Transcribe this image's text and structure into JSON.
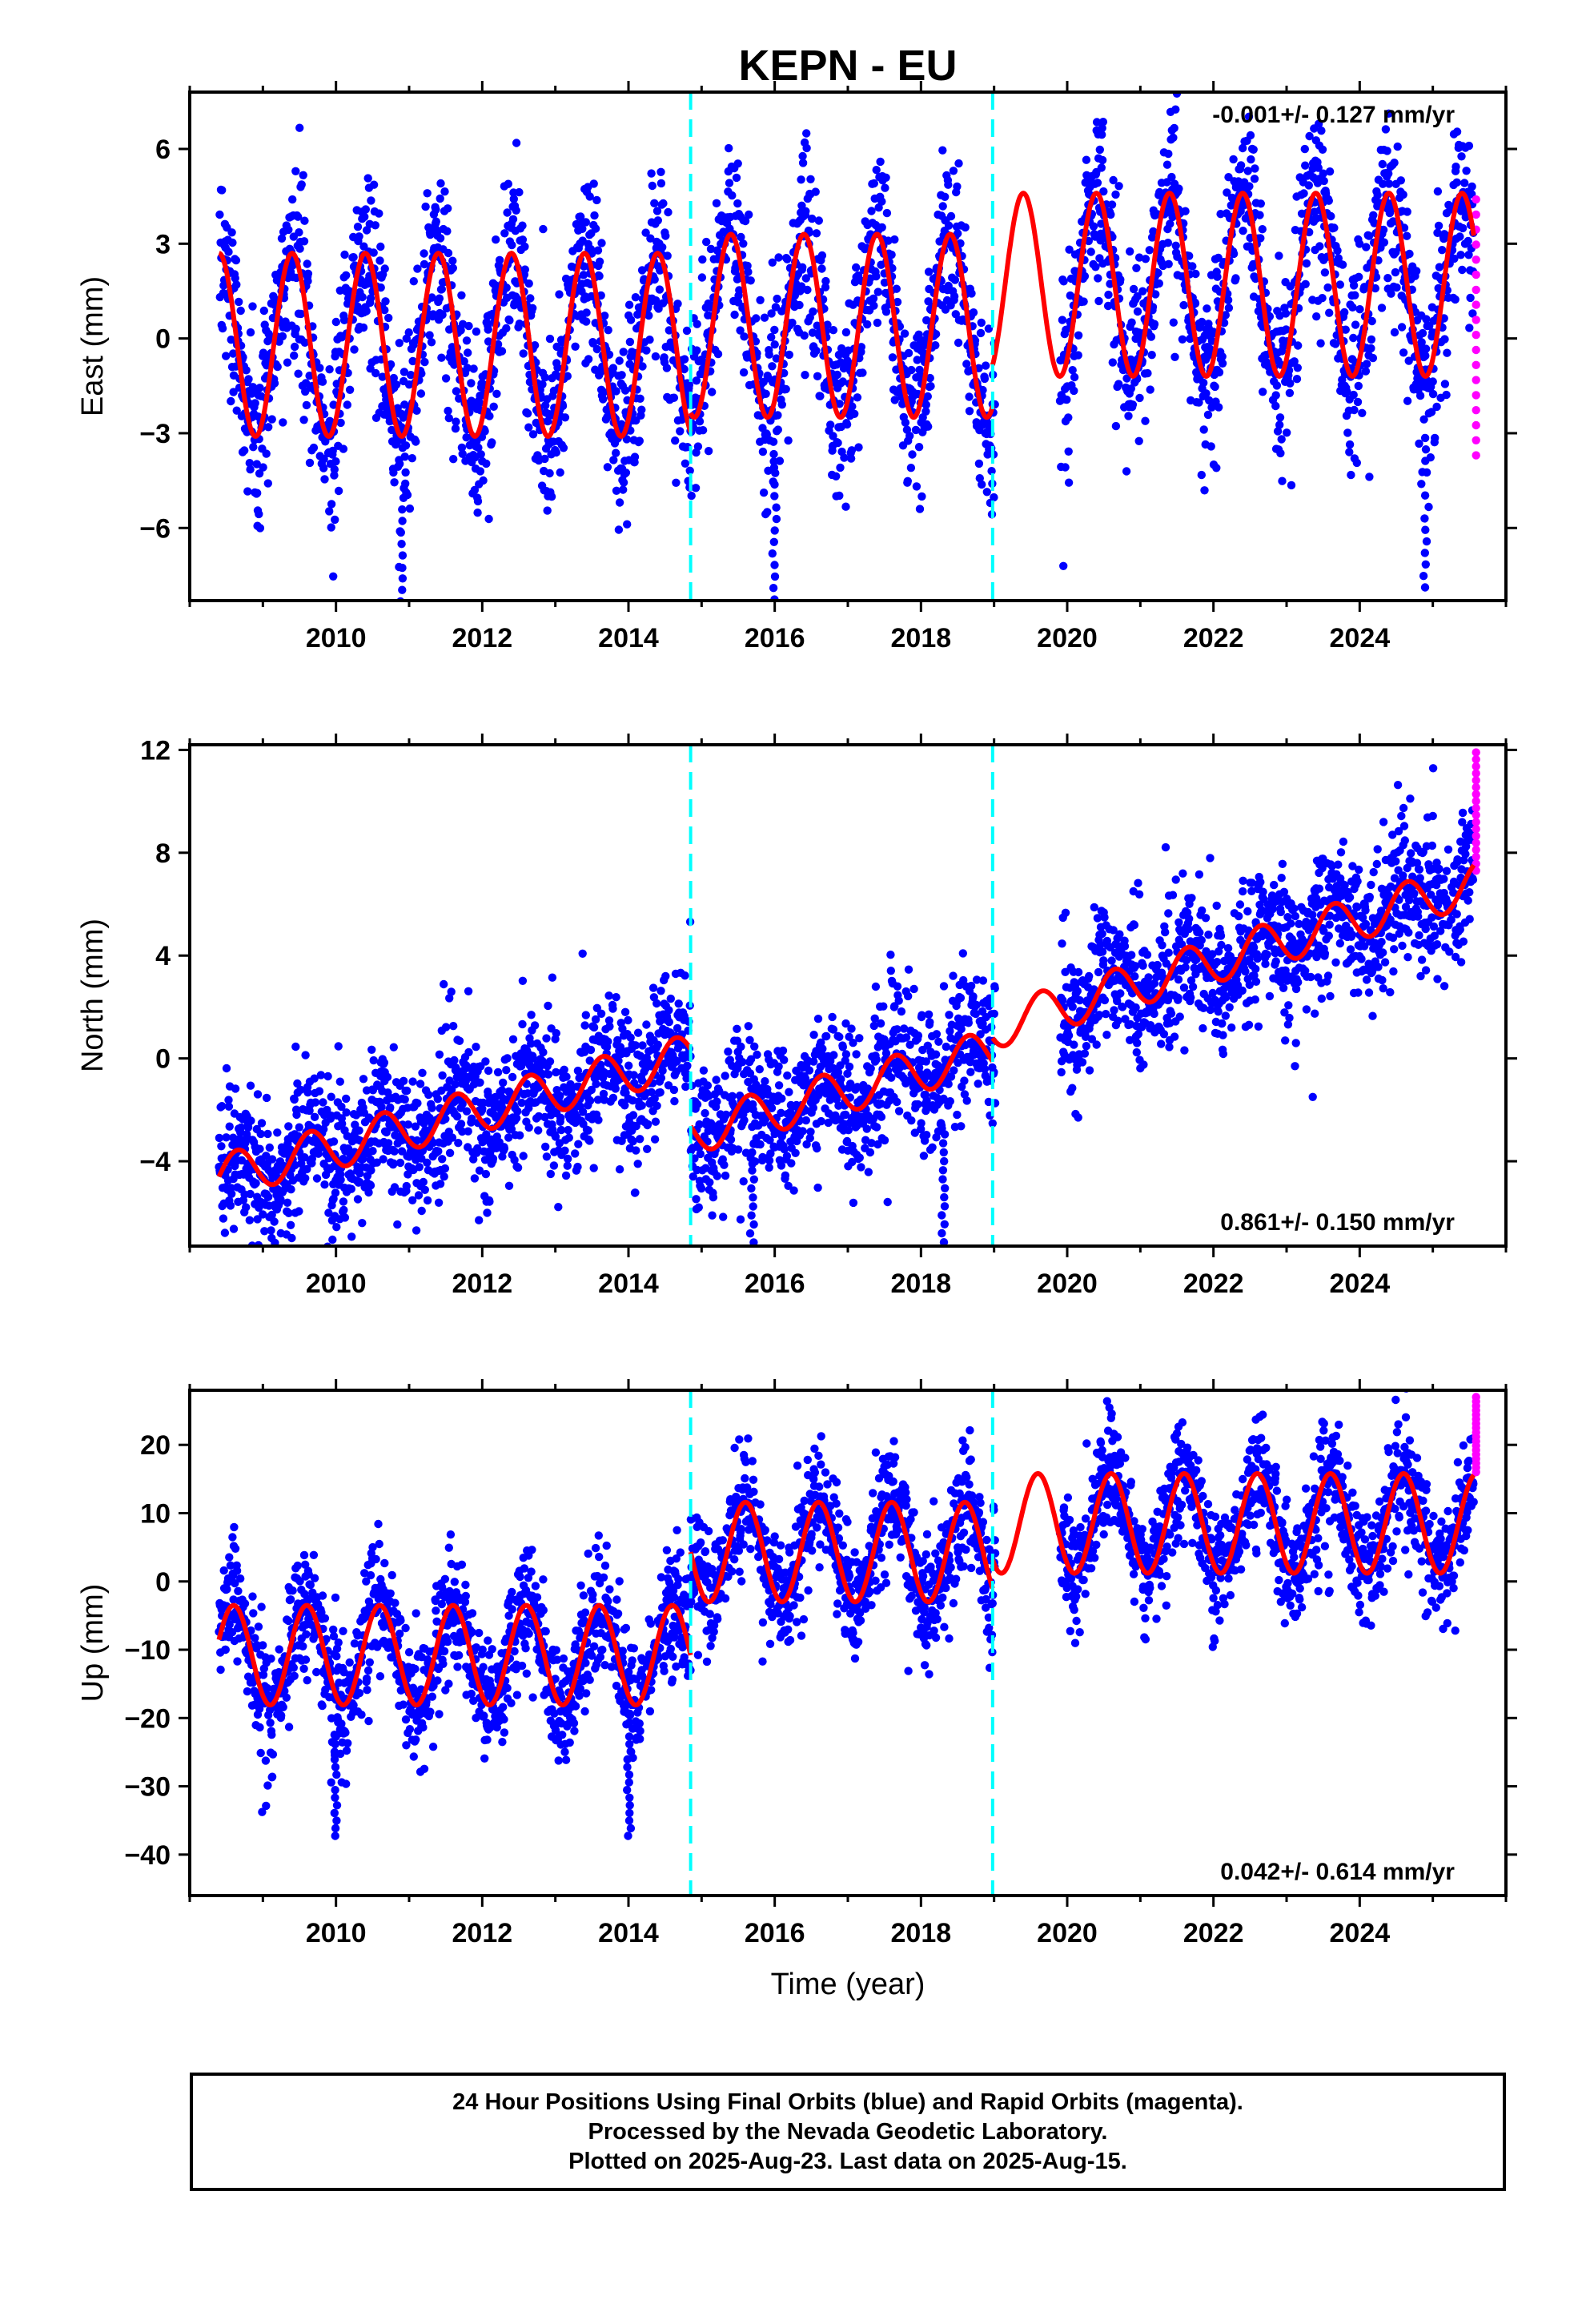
{
  "title": "KEPN - EU",
  "xlabel": "Time (year)",
  "footer": {
    "line1": "24 Hour Positions Using Final Orbits (blue) and Rapid Orbits (magenta).",
    "line2": "Processed by the Nevada Geodetic Laboratory.",
    "line3": "Plotted on 2025-Aug-23. Last data on 2025-Aug-15."
  },
  "colors": {
    "final_orbits": "#0000ff",
    "rapid_orbits": "#ff00ff",
    "model_fit": "#ff0000",
    "offsets": "#00ffff"
  },
  "chart_data": [
    {
      "type": "scatter",
      "ylabel": "East (mm)",
      "rate_label": "-0.001+/- 0.127 mm/yr",
      "rate_position": "top-right",
      "xlim": [
        2008.0,
        2026.0
      ],
      "ylim": [
        -8.3,
        7.8
      ],
      "xticks": [
        2010,
        2012,
        2014,
        2016,
        2018,
        2020,
        2022,
        2024
      ],
      "yticks": [
        -6,
        -3,
        0,
        3,
        6
      ],
      "offset_lines": [
        2014.85,
        2018.98
      ],
      "data_span": [
        2008.4,
        2025.56
      ],
      "data_gap": [
        2019.02,
        2019.9
      ],
      "series": [
        {
          "name": "Model fit",
          "segments": [
            {
              "x": [
                2008.4,
                2014.85
              ],
              "mean": -0.2,
              "amplitude": 2.9,
              "peak_phase": 0.4,
              "trend": 0.0
            },
            {
              "x": [
                2014.85,
                2018.98
              ],
              "mean": 0.4,
              "amplitude": 2.9,
              "peak_phase": 0.4,
              "trend": 0.0
            },
            {
              "x": [
                2018.98,
                2025.56
              ],
              "mean": 1.7,
              "amplitude": 2.9,
              "peak_phase": 0.4,
              "trend": 0.0
            }
          ]
        },
        {
          "name": "Final orbits",
          "scatter_std": 1.3,
          "spike_years": [
            2010.9,
            2016.0,
            2024.9
          ]
        },
        {
          "name": "Rapid orbits",
          "x": [
            2025.57,
            2025.6
          ],
          "y_range": [
            -3.7,
            4.4
          ]
        }
      ]
    },
    {
      "type": "scatter",
      "ylabel": "North (mm)",
      "rate_label": "0.861+/- 0.150 mm/yr",
      "rate_position": "bottom-right",
      "xlim": [
        2008.0,
        2026.0
      ],
      "ylim": [
        -7.3,
        12.2
      ],
      "xticks": [
        2010,
        2012,
        2014,
        2016,
        2018,
        2020,
        2022,
        2024
      ],
      "yticks": [
        -4,
        0,
        4,
        8,
        12
      ],
      "offset_lines": [
        2014.85,
        2018.98
      ],
      "data_span": [
        2008.4,
        2025.56
      ],
      "data_gap": [
        2019.02,
        2019.9
      ],
      "series": [
        {
          "name": "Model fit",
          "segments": [
            {
              "x": [
                2008.4,
                2014.85
              ],
              "start": -4.6,
              "end": 0.1,
              "amplitude": 0.85,
              "peak_phase": 0.65
            },
            {
              "x": [
                2014.85,
                2018.98
              ],
              "start": -2.9,
              "end": 0.3,
              "amplitude": 0.85,
              "peak_phase": 0.65
            },
            {
              "x": [
                2018.98,
                2025.56
              ],
              "start": 1.2,
              "end": 6.8,
              "amplitude": 0.85,
              "peak_phase": 0.65
            }
          ]
        },
        {
          "name": "Final orbits",
          "scatter_std": 1.25,
          "spike_years": [
            2015.7,
            2018.3
          ]
        },
        {
          "name": "Rapid orbits",
          "x": [
            2025.57,
            2025.6
          ],
          "y_range": [
            7.3,
            11.9
          ]
        }
      ]
    },
    {
      "type": "scatter",
      "ylabel": "Up (mm)",
      "rate_label": "0.042+/- 0.614 mm/yr",
      "rate_position": "bottom-right",
      "xlim": [
        2008.0,
        2026.0
      ],
      "ylim": [
        -46.0,
        28.0
      ],
      "xticks": [
        2010,
        2012,
        2014,
        2016,
        2018,
        2020,
        2022,
        2024
      ],
      "yticks": [
        -40,
        -30,
        -20,
        -10,
        0,
        10,
        20
      ],
      "offset_lines": [
        2014.85,
        2018.98
      ],
      "data_span": [
        2008.4,
        2025.56
      ],
      "data_gap": [
        2019.02,
        2019.9
      ],
      "series": [
        {
          "name": "Model fit",
          "segments": [
            {
              "x": [
                2008.4,
                2014.85
              ],
              "mean": -10.8,
              "amplitude": 7.3,
              "peak_phase": 0.6,
              "trend": 0.0
            },
            {
              "x": [
                2014.85,
                2018.98
              ],
              "mean": 4.3,
              "amplitude": 7.3,
              "peak_phase": 0.6,
              "trend": 0.0
            },
            {
              "x": [
                2018.98,
                2025.56
              ],
              "mean": 8.5,
              "amplitude": 7.3,
              "peak_phase": 0.6,
              "trend": 0.0
            }
          ]
        },
        {
          "name": "Final orbits",
          "scatter_std": 4.0,
          "spike_years": [
            2010.0,
            2014.0
          ]
        },
        {
          "name": "Rapid orbits",
          "x": [
            2025.57,
            2025.6
          ],
          "y_range": [
            16.0,
            27.0
          ]
        }
      ]
    }
  ]
}
